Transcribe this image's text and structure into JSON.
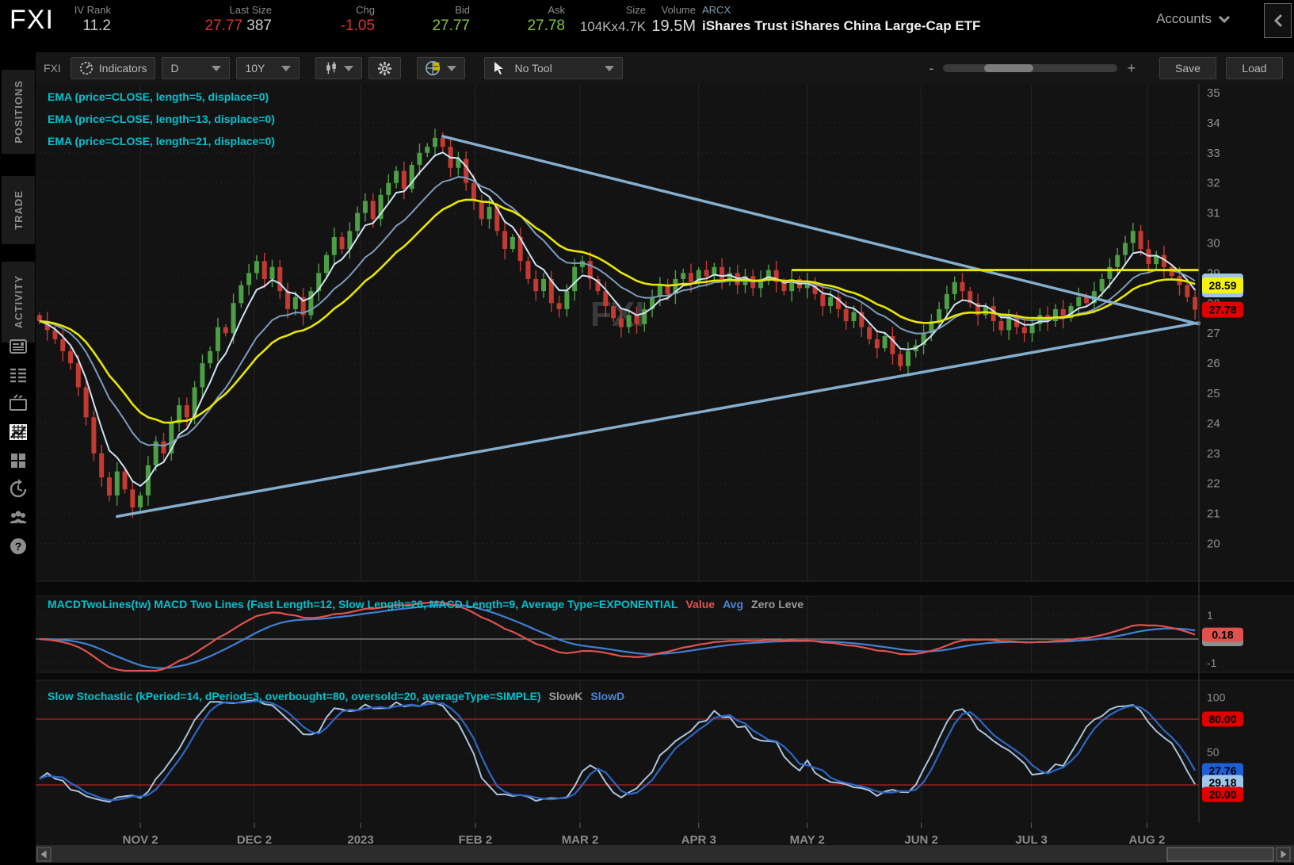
{
  "header": {
    "symbol": "FXI",
    "iv_rank": {
      "label": "IV Rank",
      "value": "11.2"
    },
    "last_size": {
      "label": "Last Size",
      "price": "27.77",
      "size": "387"
    },
    "chg": {
      "label": "Chg",
      "value": "-1.05"
    },
    "bid": {
      "label": "Bid",
      "value": "27.77"
    },
    "ask": {
      "label": "Ask",
      "value": "27.78"
    },
    "size": {
      "label": "Size",
      "value": "104Kx4.7K"
    },
    "volume": {
      "label": "Volume",
      "value": "19.5M"
    },
    "exchange": "ARCX",
    "description": "iShares Trust iShares China Large-Cap ETF",
    "accounts_label": "Accounts"
  },
  "sidebar": {
    "tabs": [
      "POSITIONS",
      "TRADE",
      "ACTIVITY"
    ],
    "icons": [
      "news-icon",
      "watchlist-icon",
      "monitor-icon",
      "chart-icon",
      "apps-grid-icon",
      "history-icon",
      "community-icon",
      "help-icon"
    ],
    "active_icon": "chart-icon"
  },
  "toolbar": {
    "symbol": "FXI",
    "indicators_label": "Indicators",
    "timeframe": "D",
    "range": "10Y",
    "tool_label": "No Tool",
    "zoom_minus": "-",
    "zoom_plus": "+",
    "save_label": "Save",
    "load_label": "Load"
  },
  "studies": {
    "ema_labels": [
      "EMA (price=CLOSE, length=5, displace=0)",
      "EMA (price=CLOSE, length=13, displace=0)",
      "EMA (price=CLOSE, length=21, displace=0)"
    ],
    "macd_title": "MACDTwoLines(tw) MACD Two Lines (Fast Length=12, Slow Length=26, MACD Length=9, Average Type=EXPONENTIAL",
    "macd_value_label": "Value",
    "macd_avg_label": "Avg",
    "macd_zero_label": "Zero Leve",
    "stoch_title": "Slow Stochastic (kPeriod=14, dPeriod=3, overbought=80, oversold=20, averageType=SIMPLE)",
    "stoch_k_label": "SlowK",
    "stoch_d_label": "SlowD"
  },
  "chart_data": {
    "type": "candlestick-with-studies",
    "watermark": "FXI",
    "price_axis": {
      "min": 20,
      "max": 35,
      "tick_step": 1
    },
    "x_ticks": [
      {
        "label": "NOV 2",
        "i": 13.0
      },
      {
        "label": "DEC 2",
        "i": 27.7
      },
      {
        "label": "2023",
        "i": 41.4
      },
      {
        "label": "FEB 2",
        "i": 56.2
      },
      {
        "label": "MAR 2",
        "i": 69.7
      },
      {
        "label": "APR 3",
        "i": 85.0
      },
      {
        "label": "MAY 2",
        "i": 99.0
      },
      {
        "label": "JUN 2",
        "i": 113.7
      },
      {
        "label": "JUL 3",
        "i": 127.9
      },
      {
        "label": "AUG 2",
        "i": 142.8
      }
    ],
    "first_open": 27.6,
    "closes": [
      27.4,
      27.1,
      26.8,
      26.4,
      26.0,
      25.2,
      24.2,
      23.0,
      22.2,
      21.6,
      22.4,
      21.8,
      21.2,
      21.6,
      22.6,
      23.4,
      23.0,
      24.0,
      24.6,
      24.2,
      25.2,
      26.0,
      26.4,
      27.2,
      27.0,
      28.0,
      28.6,
      29.0,
      29.4,
      28.8,
      29.2,
      28.4,
      27.8,
      28.2,
      27.6,
      28.4,
      29.0,
      29.6,
      30.2,
      29.8,
      30.4,
      31.0,
      31.4,
      30.8,
      31.6,
      32.0,
      32.4,
      31.8,
      32.6,
      33.0,
      33.2,
      33.5,
      33.2,
      32.5,
      32.8,
      32.0,
      31.4,
      30.8,
      31.2,
      30.4,
      29.8,
      30.2,
      29.4,
      28.8,
      28.4,
      28.8,
      28.0,
      27.8,
      28.4,
      29.2,
      29.4,
      28.8,
      28.4,
      27.9,
      27.5,
      27.2,
      27.6,
      27.3,
      27.8,
      28.2,
      28.6,
      28.3,
      28.8,
      29.0,
      28.7,
      29.1,
      28.9,
      29.2,
      28.8,
      29.0,
      28.6,
      28.9,
      28.5,
      28.8,
      29.1,
      28.7,
      28.4,
      28.8,
      28.5,
      28.7,
      28.3,
      27.9,
      28.2,
      27.8,
      27.4,
      27.7,
      27.2,
      26.8,
      26.5,
      26.9,
      26.3,
      25.9,
      26.4,
      26.6,
      27.0,
      27.4,
      27.8,
      28.3,
      28.7,
      28.4,
      28.0,
      27.6,
      27.9,
      27.4,
      27.1,
      27.5,
      27.2,
      27.0,
      27.3,
      27.6,
      27.4,
      27.8,
      27.5,
      27.9,
      28.2,
      28.0,
      28.4,
      28.8,
      29.2,
      29.6,
      30.0,
      30.4,
      29.8,
      29.3,
      29.6,
      29.2,
      28.9,
      28.6,
      28.2,
      27.78
    ],
    "ema_lengths": [
      5,
      13,
      21
    ],
    "macd": {
      "fast": 12,
      "slow": 26,
      "signal": 9,
      "axis_ticks": [
        1,
        -1
      ],
      "value_bubble": "0.18"
    },
    "stoch": {
      "k_period": 14,
      "d_period": 3,
      "overbought": 80,
      "oversold": 20,
      "axis_ticks": [
        100,
        50
      ],
      "bubbles": {
        "overbought": "80.00",
        "slowd": "27.76",
        "slowk": "29.18",
        "oversold": "20.00"
      }
    },
    "price_bubbles": {
      "ema21": "28.59",
      "last": "27.78"
    },
    "drawings": {
      "trendlines": [
        {
          "from_i": 52,
          "from_p": 33.55,
          "to_i": 150,
          "to_p": 27.3
        },
        {
          "from_i": 10,
          "from_p": 20.9,
          "to_i": 150,
          "to_p": 27.35
        }
      ],
      "hline": {
        "price": 29.1,
        "from_i": 97
      }
    }
  },
  "colors": {
    "candle_up": "#4d9e44",
    "candle_down": "#c33a32",
    "ema5": "#cfe4f4",
    "ema13": "#7d9cbe",
    "ema21": "#e6e600",
    "trendline": "#85aecd",
    "hline": "#e6e600",
    "macd_value": "#e0524d",
    "macd_avg": "#3f7fd4",
    "stoch_k": "#aac4dc",
    "stoch_d": "#2f66c4",
    "stoch_level": "#b22222",
    "bubble_yellow": "#f2f20c",
    "bubble_red": "#e00000",
    "bubble_salmon": "#e0524d",
    "bubble_blue": "#1f5fd6",
    "bubble_lightblue": "#9fc6e8",
    "bubble_gray": "#8f8f8f",
    "axis_text": "#8f8f8f",
    "grid": "#2e2e2e",
    "vgrid": "#242424",
    "watermark": "#3a3a3a"
  }
}
